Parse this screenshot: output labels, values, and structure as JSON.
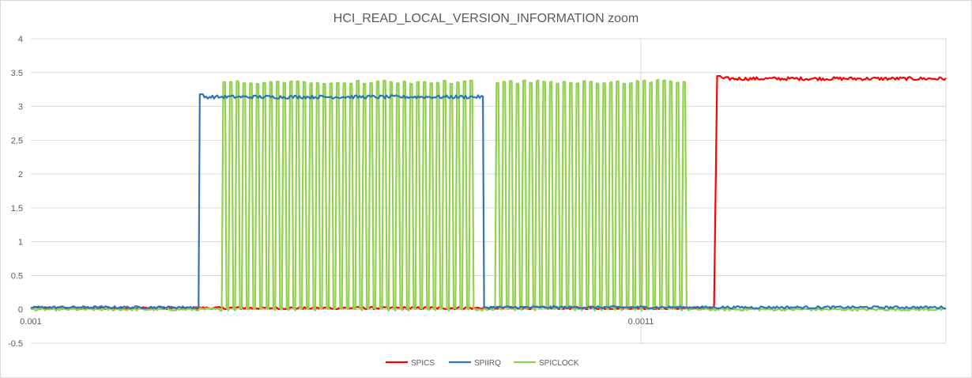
{
  "chart_data": {
    "type": "line",
    "title": "HCI_READ_LOCAL_VERSION_INFORMATION zoom",
    "xlabel": "",
    "ylabel": "",
    "xlim": [
      0.001,
      0.00115
    ],
    "ylim": [
      -0.5,
      4
    ],
    "x_ticks": [
      {
        "value": 0.001,
        "label": "0.001"
      },
      {
        "value": 0.0011,
        "label": "0.0011"
      }
    ],
    "y_ticks": [
      {
        "value": -0.5,
        "label": "-0.5"
      },
      {
        "value": 0,
        "label": "0"
      },
      {
        "value": 0.5,
        "label": "0.5"
      },
      {
        "value": 1,
        "label": "1"
      },
      {
        "value": 1.5,
        "label": "1.5"
      },
      {
        "value": 2,
        "label": "2"
      },
      {
        "value": 2.5,
        "label": "2.5"
      },
      {
        "value": 3,
        "label": "3"
      },
      {
        "value": 3.5,
        "label": "3.5"
      },
      {
        "value": 4,
        "label": "4"
      }
    ],
    "grid": {
      "horizontal": true,
      "vertical": true
    },
    "legend_position": "bottom",
    "series": [
      {
        "name": "SPICS",
        "color": "#ff0000",
        "segments": [
          {
            "x_start": 0.001,
            "x_end": 0.001112,
            "level": 0.02
          },
          {
            "x_start": 0.0011125,
            "x_end": 0.00115,
            "level": 3.41
          }
        ]
      },
      {
        "name": "SPIIRQ",
        "color": "#2e75b6",
        "segments": [
          {
            "x_start": 0.001,
            "x_end": 0.0010275,
            "level": 0.03
          },
          {
            "x_start": 0.0010277,
            "x_end": 0.0010741,
            "level": 3.14
          },
          {
            "x_start": 0.0010743,
            "x_end": 0.00115,
            "level": 0.03
          }
        ]
      },
      {
        "name": "SPICLOCK",
        "color": "#92d050",
        "high": 3.36,
        "low": 0.0,
        "bursts": [
          {
            "x_start": 0.0010313,
            "x_end": 0.0010729,
            "cycles": 38
          },
          {
            "x_start": 0.0010761,
            "x_end": 0.0011078,
            "cycles": 29
          }
        ]
      }
    ]
  }
}
